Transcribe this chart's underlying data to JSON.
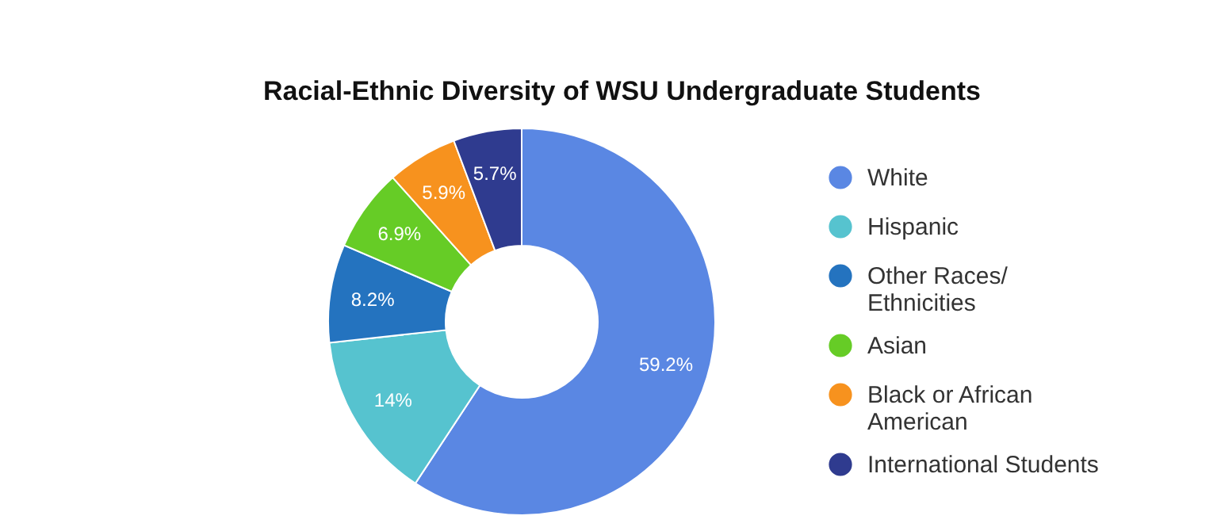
{
  "chart_data": {
    "type": "donut",
    "title": "Racial-Ethnic Diversity of WSU Undergraduate Students",
    "categories": [
      "White",
      "Hispanic",
      "Other Races/Ethnicities",
      "Asian",
      "Black or African American",
      "International Students"
    ],
    "values": [
      59.2,
      14,
      8.2,
      6.9,
      5.9,
      5.7
    ],
    "colors": [
      "#5a87e3",
      "#56c3cf",
      "#2473bf",
      "#66cc26",
      "#f7921e",
      "#2f3b8f"
    ],
    "value_labels": [
      "59.2%",
      "14%",
      "8.2%",
      "6.9%",
      "5.9%",
      "5.7%"
    ],
    "legend": "right"
  }
}
